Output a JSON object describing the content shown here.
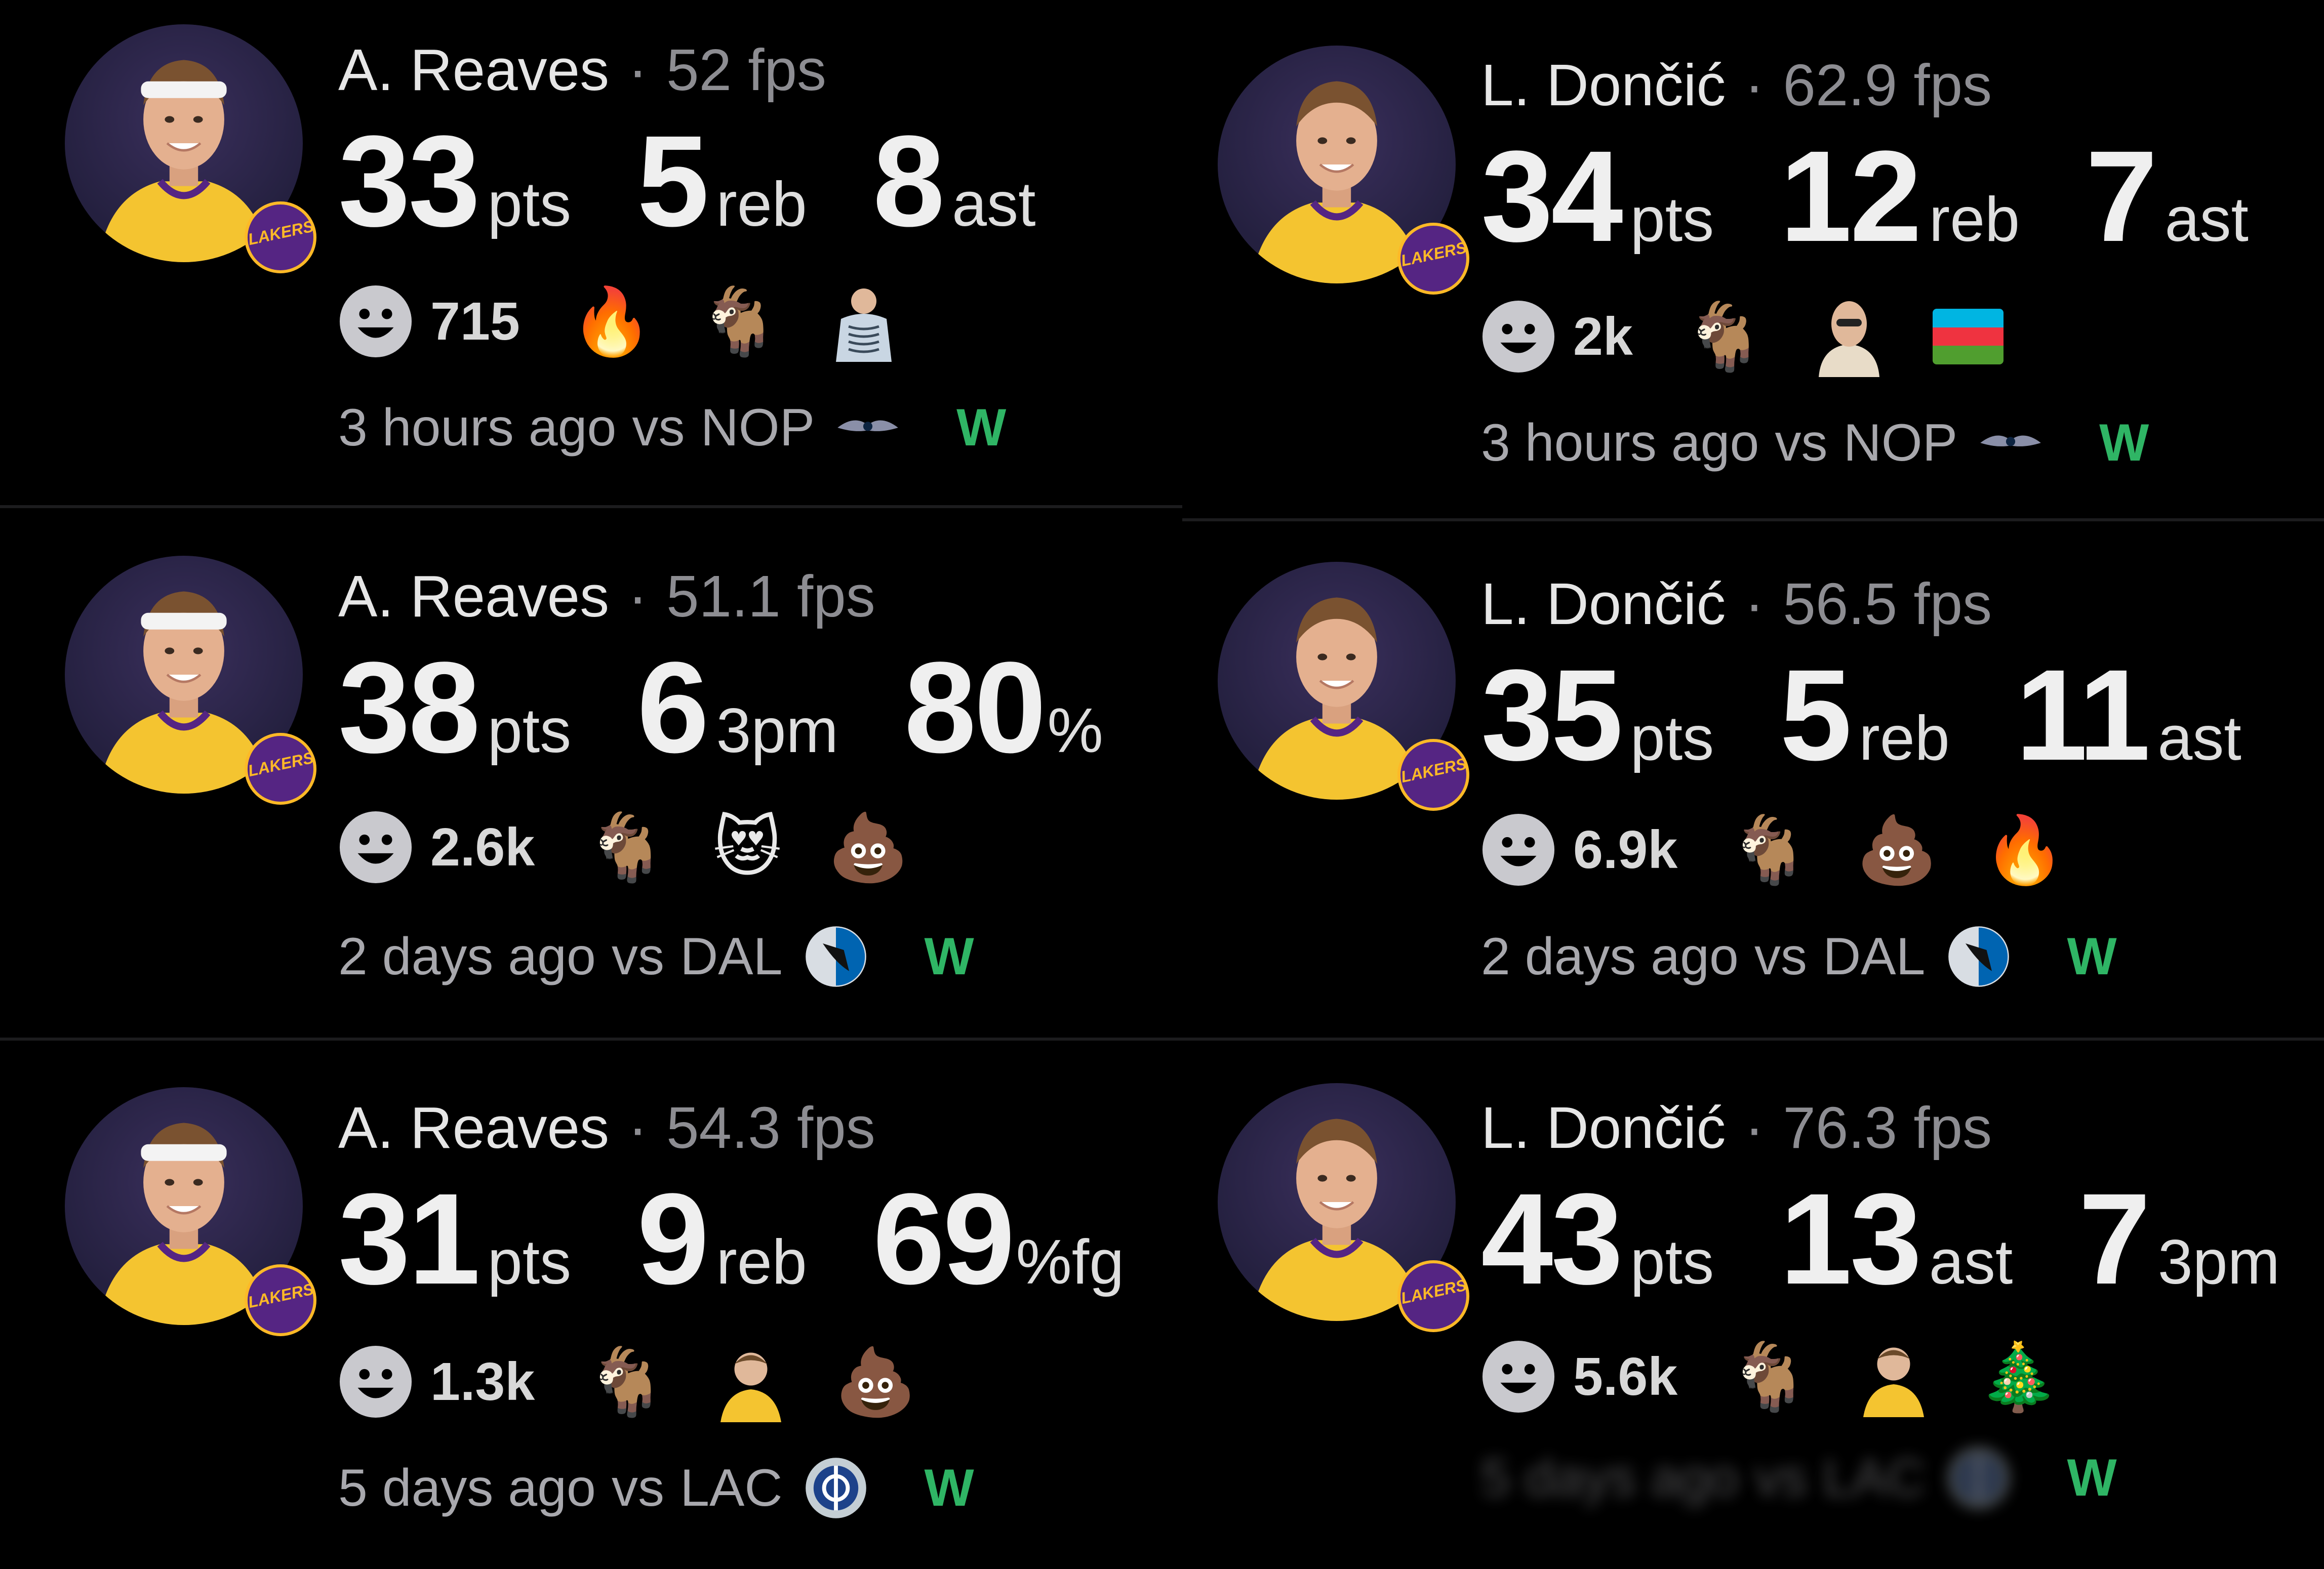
{
  "cards": [
    {
      "player": "A. Reaves",
      "fps": "52 fps",
      "stats": [
        {
          "value": "33",
          "unit": "pts"
        },
        {
          "value": "5",
          "unit": "reb"
        },
        {
          "value": "8",
          "unit": "ast"
        }
      ],
      "reaction_count": "715",
      "reactions": [
        "fire-emoji",
        "goat-emoji",
        "player-xray-image"
      ],
      "time": "3 hours ago",
      "vs": "vs",
      "opponent": "NOP",
      "opponent_logo": "pelicans-logo",
      "result": "W",
      "team_logo_text": "LAKERS"
    },
    {
      "player": "L. Dončić",
      "fps": "62.9 fps",
      "stats": [
        {
          "value": "34",
          "unit": "pts"
        },
        {
          "value": "12",
          "unit": "reb"
        },
        {
          "value": "7",
          "unit": "ast"
        }
      ],
      "reaction_count": "2k",
      "reactions": [
        "goat-emoji",
        "masked-person-image",
        "azerbaijan-flag"
      ],
      "time": "3 hours ago",
      "vs": "vs",
      "opponent": "NOP",
      "opponent_logo": "pelicans-logo",
      "result": "W",
      "team_logo_text": "LAKERS"
    },
    {
      "player": "A. Reaves",
      "fps": "51.1 fps",
      "stats": [
        {
          "value": "38",
          "unit": "pts"
        },
        {
          "value": "6",
          "unit": "3pm"
        },
        {
          "value": "80",
          "unit": "%"
        }
      ],
      "reaction_count": "2.6k",
      "reactions": [
        "goat-emoji",
        "heart-eyes-cat-emoji",
        "poop-emoji"
      ],
      "time": "2 days ago",
      "vs": "vs",
      "opponent": "DAL",
      "opponent_logo": "mavericks-logo",
      "result": "W",
      "team_logo_text": "LAKERS"
    },
    {
      "player": "L. Dončić",
      "fps": "56.5 fps",
      "stats": [
        {
          "value": "35",
          "unit": "pts"
        },
        {
          "value": "5",
          "unit": "reb"
        },
        {
          "value": "11",
          "unit": "ast"
        }
      ],
      "reaction_count": "6.9k",
      "reactions": [
        "goat-emoji",
        "poop-emoji",
        "fire-emoji"
      ],
      "time": "2 days ago",
      "vs": "vs",
      "opponent": "DAL",
      "opponent_logo": "mavericks-logo",
      "result": "W",
      "team_logo_text": "LAKERS"
    },
    {
      "player": "A. Reaves",
      "fps": "54.3 fps",
      "stats": [
        {
          "value": "31",
          "unit": "pts"
        },
        {
          "value": "9",
          "unit": "reb"
        },
        {
          "value": "69",
          "unit": "%fg"
        }
      ],
      "reaction_count": "1.3k",
      "reactions": [
        "goat-emoji",
        "player-photo-image",
        "poop-emoji"
      ],
      "time": "5 days ago",
      "vs": "vs",
      "opponent": "LAC",
      "opponent_logo": "clippers-logo",
      "result": "W",
      "team_logo_text": "LAKERS"
    },
    {
      "player": "L. Dončić",
      "fps": "76.3 fps",
      "stats": [
        {
          "value": "43",
          "unit": "pts"
        },
        {
          "value": "13",
          "unit": "ast"
        },
        {
          "value": "7",
          "unit": "3pm"
        }
      ],
      "reaction_count": "5.6k",
      "reactions": [
        "goat-emoji",
        "player-photo-image",
        "christmas-tree-emoji"
      ],
      "time": "5 days ago",
      "vs": "vs",
      "opponent": "LAC",
      "opponent_logo": "clippers-logo",
      "result": "W",
      "team_logo_text": "LAKERS",
      "footer_blurred": true
    }
  ],
  "emoji": {
    "fire": "🔥",
    "goat": "🐐",
    "poop": "💩",
    "heart_eyes_cat": "😻",
    "christmas_tree": "🎄"
  },
  "colors": {
    "background": "#000000",
    "win": "#2fb565",
    "muted": "#8d8d92",
    "lakers_purple": "#552583",
    "lakers_gold": "#fdb927"
  }
}
